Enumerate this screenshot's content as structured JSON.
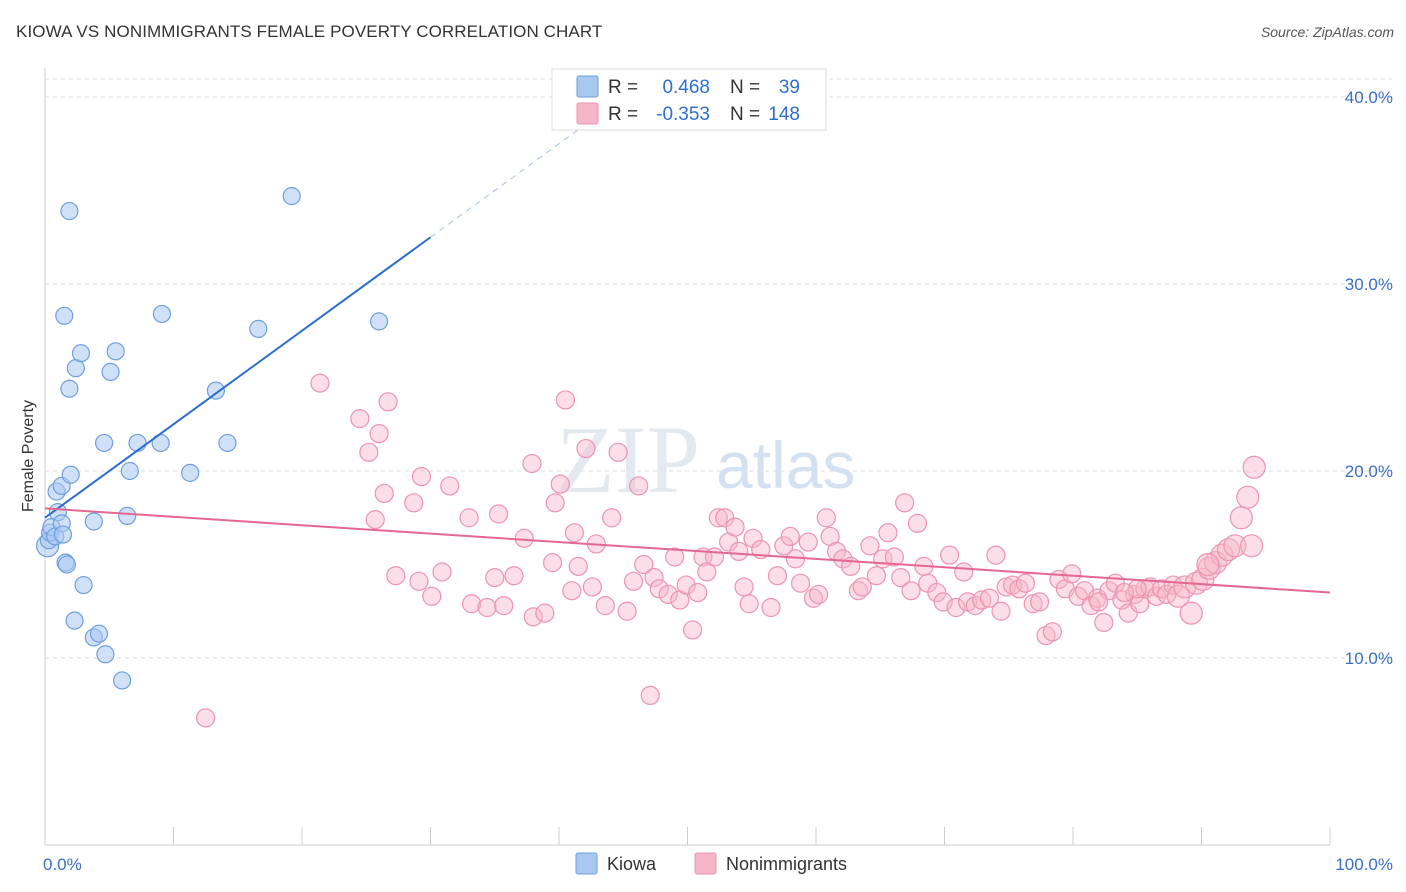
{
  "title": "KIOWA VS NONIMMIGRANTS FEMALE POVERTY CORRELATION CHART",
  "source": "Source: ZipAtlas.com",
  "watermark": {
    "zip": "ZIP",
    "atlas": "atlas"
  },
  "colors": {
    "kiowa_fill": "#a9c8f0",
    "kiowa_stroke": "#6f9fdf",
    "kiowa_line": "#2a6dd2",
    "non_fill": "#f6b6c9",
    "non_stroke": "#ec94b0",
    "non_line": "#e4678f",
    "grid": "#dddddd",
    "tick_text": "#3a6fc4"
  },
  "legend": {
    "rows": [
      {
        "r_label": "R =",
        "r_value": "0.468",
        "n_label": "N =",
        "n_value": "39"
      },
      {
        "r_label": "R =",
        "r_value": "-0.353",
        "n_label": "N =",
        "n_value": "148"
      }
    ]
  },
  "bottom_legend": [
    "Kiowa",
    "Nonimmigrants"
  ],
  "chart_data": {
    "type": "scatter",
    "title": "KIOWA VS NONIMMIGRANTS FEMALE POVERTY CORRELATION CHART",
    "xlabel": "",
    "ylabel": "Female Poverty",
    "xlim": [
      0,
      100
    ],
    "ylim": [
      0,
      42
    ],
    "x_tick_labels": [
      "0.0%",
      "100.0%"
    ],
    "y_ticks": [
      10,
      20,
      30,
      40
    ],
    "y_tick_labels": [
      "10.0%",
      "20.0%",
      "30.0%",
      "40.0%"
    ],
    "grid": true,
    "series": [
      {
        "name": "Kiowa",
        "r": 0.468,
        "n": 39,
        "trend": {
          "x0": 0,
          "y0": 17.5,
          "x1": 30,
          "y1": 32.5,
          "dashed_to_x": 42,
          "dashed_to_y": 38.5
        },
        "points": [
          [
            0.2,
            16.0
          ],
          [
            0.3,
            16.3
          ],
          [
            0.4,
            16.7
          ],
          [
            0.5,
            17.0
          ],
          [
            0.8,
            16.5
          ],
          [
            1.0,
            17.8
          ],
          [
            0.9,
            18.9
          ],
          [
            1.3,
            17.2
          ],
          [
            1.4,
            16.6
          ],
          [
            1.3,
            19.2
          ],
          [
            1.6,
            15.1
          ],
          [
            1.7,
            15.0
          ],
          [
            2.0,
            19.8
          ],
          [
            1.9,
            24.4
          ],
          [
            2.3,
            12.0
          ],
          [
            1.5,
            28.3
          ],
          [
            1.9,
            33.9
          ],
          [
            2.4,
            25.5
          ],
          [
            2.8,
            26.3
          ],
          [
            3.0,
            13.9
          ],
          [
            3.8,
            17.3
          ],
          [
            3.8,
            11.1
          ],
          [
            4.2,
            11.3
          ],
          [
            4.6,
            21.5
          ],
          [
            4.7,
            10.2
          ],
          [
            5.1,
            25.3
          ],
          [
            5.5,
            26.4
          ],
          [
            6.0,
            8.8
          ],
          [
            6.4,
            17.6
          ],
          [
            6.6,
            20.0
          ],
          [
            7.2,
            21.5
          ],
          [
            9.1,
            28.4
          ],
          [
            9.0,
            21.5
          ],
          [
            11.3,
            19.9
          ],
          [
            13.3,
            24.3
          ],
          [
            14.2,
            21.5
          ],
          [
            16.6,
            27.6
          ],
          [
            19.2,
            34.7
          ],
          [
            26.0,
            28.0
          ]
        ]
      },
      {
        "name": "Nonimmigrants",
        "r": -0.353,
        "n": 148,
        "trend": {
          "x0": 0,
          "y0": 18.0,
          "x1": 100,
          "y1": 13.5
        },
        "points": [
          [
            12.5,
            6.8
          ],
          [
            21.4,
            24.7
          ],
          [
            24.5,
            22.8
          ],
          [
            25.2,
            21.0
          ],
          [
            25.7,
            17.4
          ],
          [
            26.0,
            22.0
          ],
          [
            26.4,
            18.8
          ],
          [
            26.7,
            23.7
          ],
          [
            27.3,
            14.4
          ],
          [
            28.7,
            18.3
          ],
          [
            29.1,
            14.1
          ],
          [
            29.3,
            19.7
          ],
          [
            30.1,
            13.3
          ],
          [
            30.9,
            14.6
          ],
          [
            31.5,
            19.2
          ],
          [
            33.0,
            17.5
          ],
          [
            33.2,
            12.9
          ],
          [
            34.4,
            12.7
          ],
          [
            35.0,
            14.3
          ],
          [
            35.3,
            17.7
          ],
          [
            35.7,
            12.8
          ],
          [
            36.5,
            14.4
          ],
          [
            37.3,
            16.4
          ],
          [
            37.9,
            20.4
          ],
          [
            38.0,
            12.2
          ],
          [
            38.9,
            12.4
          ],
          [
            39.5,
            15.1
          ],
          [
            39.7,
            18.3
          ],
          [
            40.1,
            19.3
          ],
          [
            40.5,
            23.8
          ],
          [
            41.0,
            13.6
          ],
          [
            41.2,
            16.7
          ],
          [
            41.5,
            14.9
          ],
          [
            42.1,
            21.2
          ],
          [
            42.6,
            13.8
          ],
          [
            42.9,
            16.1
          ],
          [
            43.6,
            12.8
          ],
          [
            44.1,
            17.5
          ],
          [
            44.6,
            21.0
          ],
          [
            45.3,
            12.5
          ],
          [
            45.8,
            14.1
          ],
          [
            46.2,
            19.2
          ],
          [
            46.6,
            15.0
          ],
          [
            47.1,
            8.0
          ],
          [
            47.4,
            14.3
          ],
          [
            47.8,
            13.7
          ],
          [
            48.5,
            13.4
          ],
          [
            49.0,
            15.4
          ],
          [
            49.4,
            13.1
          ],
          [
            49.9,
            13.9
          ],
          [
            50.4,
            11.5
          ],
          [
            50.8,
            13.5
          ],
          [
            51.2,
            15.4
          ],
          [
            51.5,
            14.6
          ],
          [
            52.1,
            15.4
          ],
          [
            52.4,
            17.5
          ],
          [
            52.9,
            17.5
          ],
          [
            53.2,
            16.2
          ],
          [
            53.7,
            17.0
          ],
          [
            54.0,
            15.7
          ],
          [
            54.4,
            13.8
          ],
          [
            54.8,
            12.9
          ],
          [
            55.1,
            16.4
          ],
          [
            55.7,
            15.8
          ],
          [
            56.5,
            12.7
          ],
          [
            57.0,
            14.4
          ],
          [
            57.5,
            16.0
          ],
          [
            58.0,
            16.5
          ],
          [
            58.4,
            15.3
          ],
          [
            58.8,
            14.0
          ],
          [
            59.4,
            16.2
          ],
          [
            59.8,
            13.2
          ],
          [
            60.2,
            13.4
          ],
          [
            60.8,
            17.5
          ],
          [
            61.1,
            16.5
          ],
          [
            61.6,
            15.7
          ],
          [
            62.1,
            15.3
          ],
          [
            62.7,
            14.9
          ],
          [
            63.3,
            13.6
          ],
          [
            63.6,
            13.8
          ],
          [
            64.2,
            16.0
          ],
          [
            64.7,
            14.4
          ],
          [
            65.2,
            15.3
          ],
          [
            65.6,
            16.7
          ],
          [
            66.1,
            15.4
          ],
          [
            66.6,
            14.3
          ],
          [
            66.9,
            18.3
          ],
          [
            67.4,
            13.6
          ],
          [
            67.9,
            17.2
          ],
          [
            68.4,
            14.9
          ],
          [
            68.7,
            14.0
          ],
          [
            69.4,
            13.5
          ],
          [
            69.9,
            13.0
          ],
          [
            70.4,
            15.5
          ],
          [
            70.9,
            12.7
          ],
          [
            71.5,
            14.6
          ],
          [
            71.8,
            13.0
          ],
          [
            72.4,
            12.8
          ],
          [
            72.9,
            13.1
          ],
          [
            73.5,
            13.2
          ],
          [
            74.0,
            15.5
          ],
          [
            74.4,
            12.5
          ],
          [
            74.8,
            13.8
          ],
          [
            75.3,
            13.9
          ],
          [
            75.8,
            13.7
          ],
          [
            76.3,
            14.0
          ],
          [
            76.9,
            12.9
          ],
          [
            77.4,
            13.0
          ],
          [
            77.9,
            11.2
          ],
          [
            78.4,
            11.4
          ],
          [
            78.9,
            14.2
          ],
          [
            79.4,
            13.7
          ],
          [
            79.9,
            14.5
          ],
          [
            80.4,
            13.3
          ],
          [
            80.9,
            13.6
          ],
          [
            81.4,
            12.8
          ],
          [
            81.9,
            13.2
          ],
          [
            82.4,
            11.9
          ],
          [
            82.8,
            13.6
          ],
          [
            83.3,
            14.0
          ],
          [
            83.8,
            13.1
          ],
          [
            84.3,
            12.4
          ],
          [
            84.8,
            13.4
          ],
          [
            85.2,
            12.9
          ],
          [
            85.6,
            13.7
          ],
          [
            86.0,
            13.8
          ],
          [
            86.5,
            13.3
          ],
          [
            86.9,
            13.7
          ],
          [
            87.3,
            13.4
          ],
          [
            87.8,
            13.9
          ],
          [
            88.2,
            13.3
          ],
          [
            88.7,
            13.8
          ],
          [
            89.2,
            12.4
          ],
          [
            89.6,
            14.0
          ],
          [
            90.1,
            14.2
          ],
          [
            90.6,
            14.8
          ],
          [
            91.1,
            15.1
          ],
          [
            91.6,
            15.5
          ],
          [
            92.1,
            15.8
          ],
          [
            92.6,
            16.0
          ],
          [
            93.1,
            17.5
          ],
          [
            93.6,
            18.6
          ],
          [
            94.1,
            20.2
          ],
          [
            85.0,
            13.7
          ],
          [
            84.0,
            13.5
          ],
          [
            90.5,
            15.0
          ],
          [
            93.9,
            16.0
          ],
          [
            82.0,
            13.0
          ]
        ]
      }
    ]
  }
}
